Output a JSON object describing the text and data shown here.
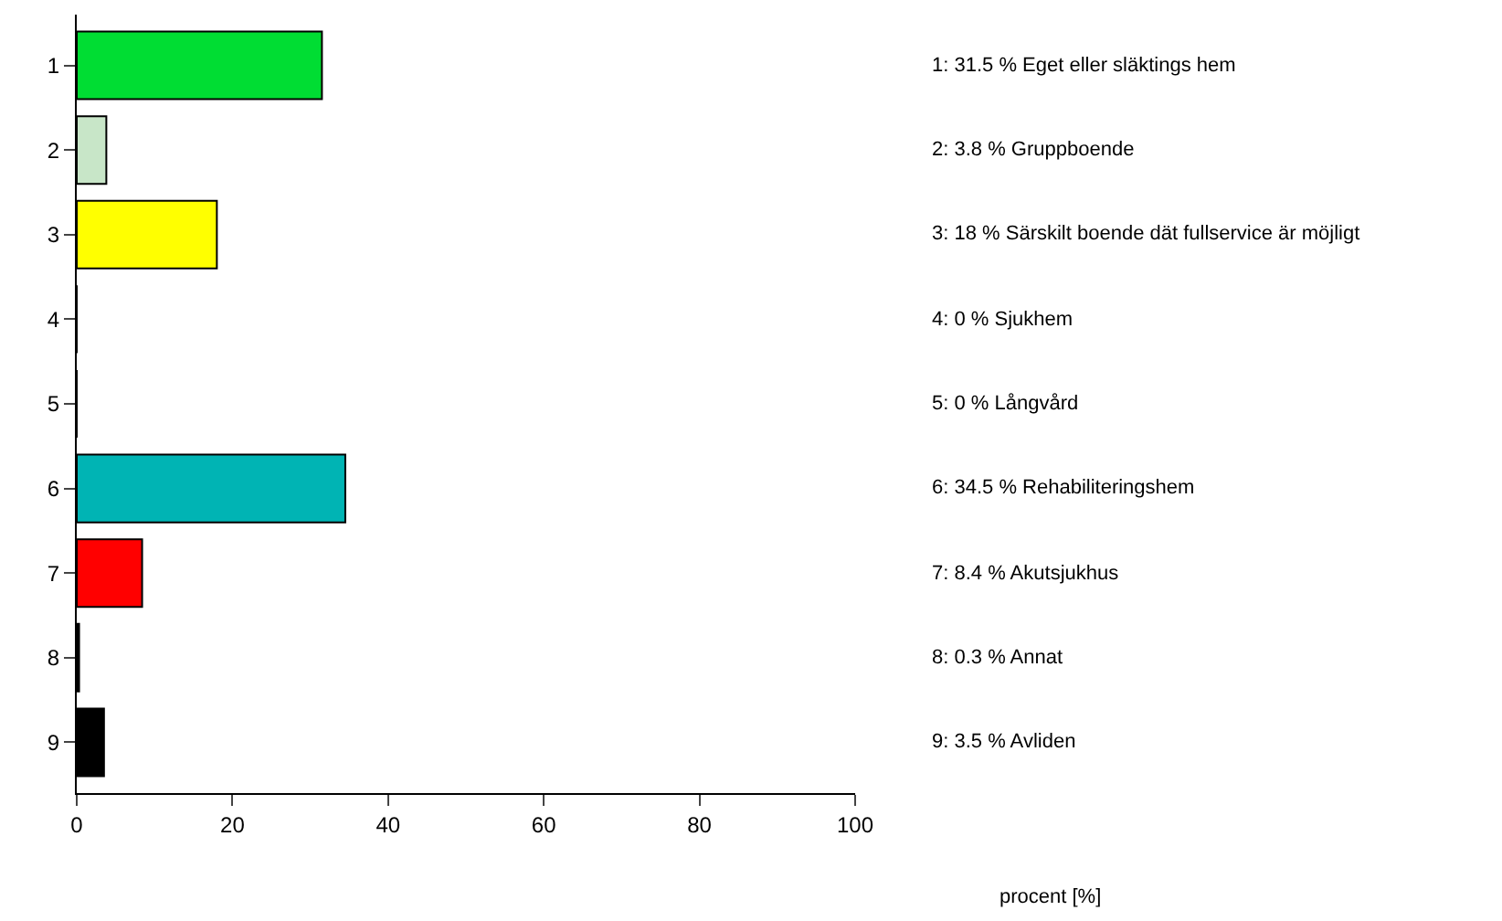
{
  "chart_data": {
    "type": "bar",
    "orientation": "horizontal",
    "categories": [
      "1",
      "2",
      "3",
      "4",
      "5",
      "6",
      "7",
      "8",
      "9"
    ],
    "values": [
      31.5,
      3.8,
      18,
      0,
      0,
      34.5,
      8.4,
      0.3,
      3.5
    ],
    "colors": [
      "#00dd33",
      "#c8e6c8",
      "#ffff00",
      "#ffffff",
      "#ffffff",
      "#00b4b4",
      "#ff0000",
      "#000000",
      "#000000"
    ],
    "xlim": [
      0,
      100
    ],
    "xticks": [
      0,
      20,
      40,
      60,
      80,
      100
    ],
    "grid": false,
    "legend": false,
    "annotations": [
      "1: 31.5 % Eget eller släktings hem",
      "2: 3.8 % Gruppboende",
      "3: 18 % Särskilt boende dät fullservice är möjligt",
      "4: 0 % Sjukhem",
      "5: 0 % Långvård",
      "6: 34.5 % Rehabiliteringshem",
      "7: 8.4 % Akutsjukhus",
      "8: 0.3 % Annat",
      "9: 3.5 % Avliden",
      "procent [%]"
    ]
  }
}
